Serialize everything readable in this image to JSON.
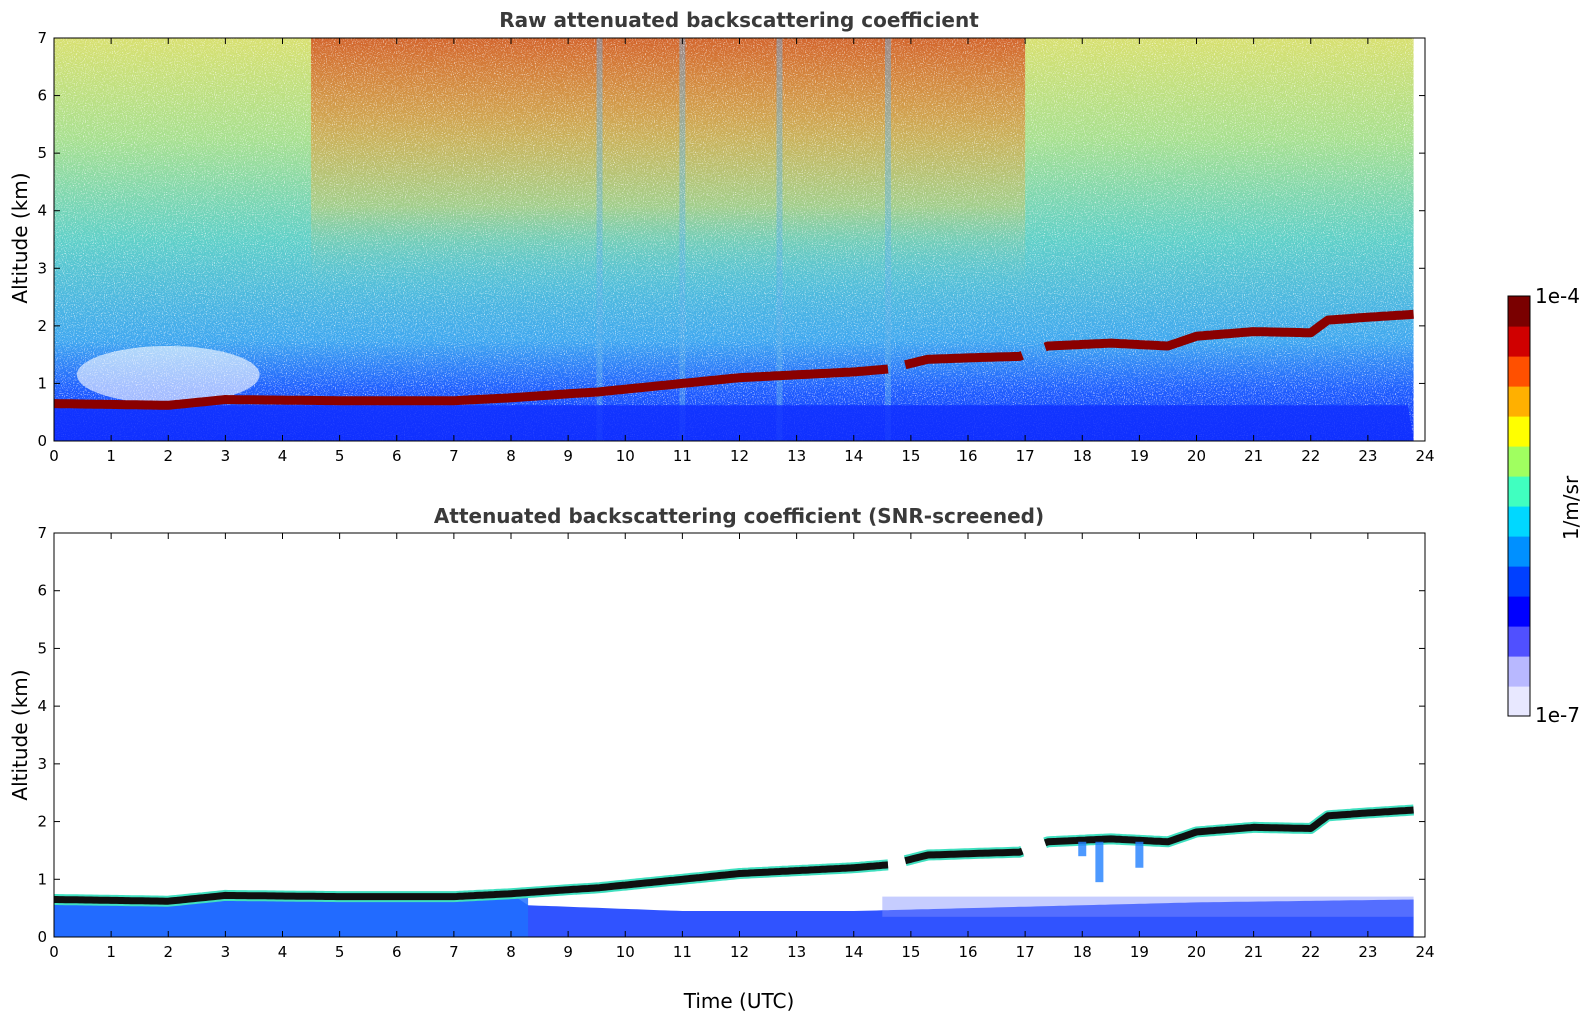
{
  "chart_data": [
    {
      "type": "heatmap",
      "title": "Raw attenuated backscattering coefficient",
      "xlabel": "",
      "ylabel": "Altitude (km)",
      "xlim": [
        0,
        24
      ],
      "ylim": [
        0,
        7
      ],
      "x_ticks": [
        0,
        1,
        2,
        3,
        4,
        5,
        6,
        7,
        8,
        9,
        10,
        11,
        12,
        13,
        14,
        15,
        16,
        17,
        18,
        19,
        20,
        21,
        22,
        23,
        24
      ],
      "y_ticks": [
        0,
        1,
        2,
        3,
        4,
        5,
        6,
        7
      ],
      "data_end_hour": 23.8,
      "cloud_base_km": {
        "x": [
          0,
          2,
          3,
          5,
          7,
          8,
          9,
          9.5,
          10,
          11,
          12,
          13,
          14,
          14.6,
          15.3,
          16.2,
          16.9,
          17.4,
          18.5,
          19.5,
          20,
          21,
          22,
          22.3,
          23,
          23.8
        ],
        "y": [
          0.65,
          0.62,
          0.72,
          0.7,
          0.7,
          0.75,
          0.82,
          0.85,
          0.9,
          1.0,
          1.1,
          1.15,
          1.2,
          1.25,
          1.42,
          1.45,
          1.47,
          1.65,
          1.7,
          1.65,
          1.82,
          1.9,
          1.88,
          2.1,
          2.15,
          2.2
        ]
      },
      "gaps_hours": [
        [
          14.6,
          14.9
        ],
        [
          16.95,
          17.35
        ]
      ],
      "noise_vertical_bands_hours": [
        9.55,
        11,
        12.7,
        14.6
      ]
    },
    {
      "type": "heatmap",
      "title": "Attenuated backscattering coefficient (SNR-screened)",
      "xlabel": "Time (UTC)",
      "ylabel": "Altitude (km)",
      "xlim": [
        0,
        24
      ],
      "ylim": [
        0,
        7
      ],
      "x_ticks": [
        0,
        1,
        2,
        3,
        4,
        5,
        6,
        7,
        8,
        9,
        10,
        11,
        12,
        13,
        14,
        15,
        16,
        17,
        18,
        19,
        20,
        21,
        22,
        23,
        24
      ],
      "y_ticks": [
        0,
        1,
        2,
        3,
        4,
        5,
        6,
        7
      ],
      "data_end_hour": 23.8,
      "boundary_layer_top_km": {
        "x": [
          0,
          2,
          3,
          6,
          8,
          8.3,
          11,
          14,
          16,
          18,
          20,
          23.8
        ],
        "y": [
          0.65,
          0.62,
          0.72,
          0.7,
          0.75,
          0.55,
          0.45,
          0.45,
          0.5,
          0.55,
          0.6,
          0.65
        ]
      }
    }
  ],
  "colorbar": {
    "min_label": "1e-7",
    "max_label": "1e-4",
    "label": "1/m/sr",
    "colors": [
      "#e8e8ff",
      "#b8b8ff",
      "#5050ff",
      "#0000ff",
      "#0040ff",
      "#0090ff",
      "#00d8ff",
      "#40ffc0",
      "#a0ff60",
      "#ffff00",
      "#ffb000",
      "#ff5000",
      "#d00000",
      "#7a0000"
    ]
  }
}
